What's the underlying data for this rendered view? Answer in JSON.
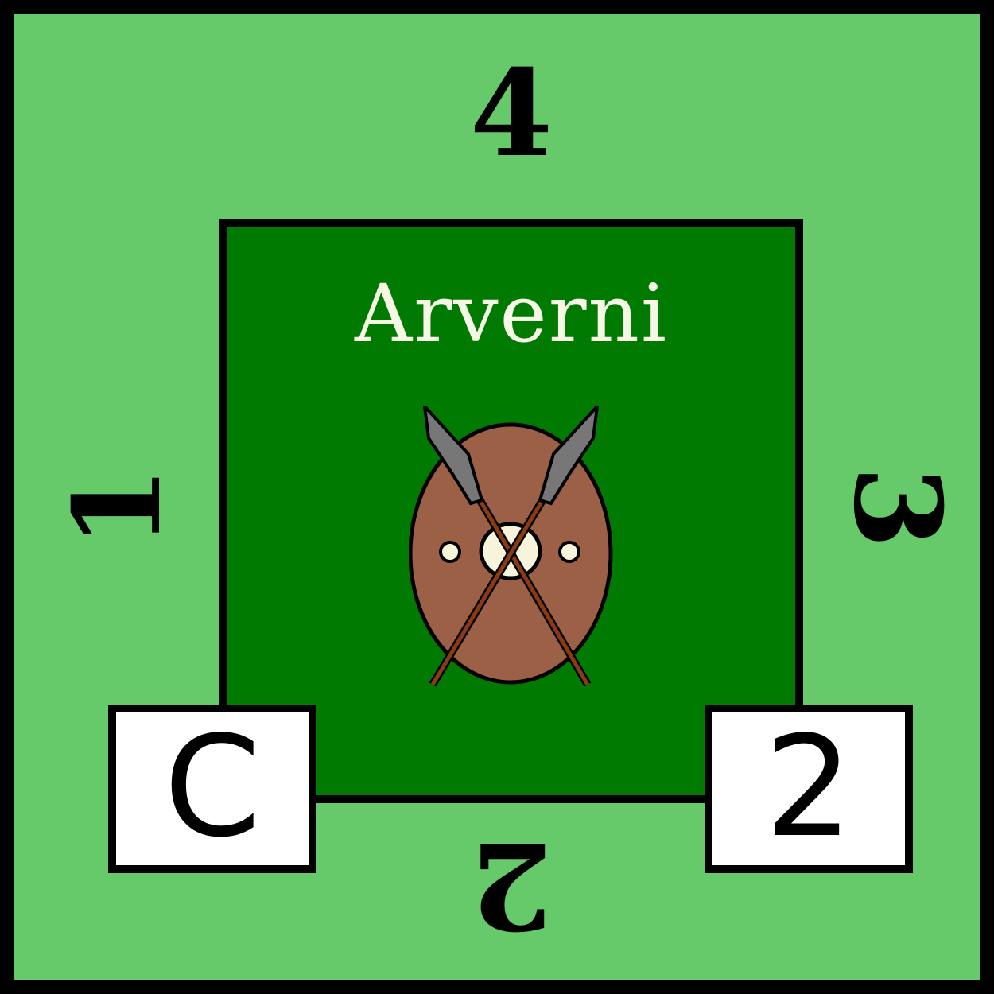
{
  "tile": {
    "edge_numbers": {
      "top": "4",
      "right": "3",
      "bottom": "2",
      "left": "1"
    },
    "title": "Arverni",
    "emblem": "shield-with-crossed-spears-icon",
    "left_box": "C",
    "right_box": "2",
    "colors": {
      "outer": "#66c96a",
      "inner": "#007a00",
      "shield": "#9b6045",
      "spear_shaft": "#8b3a12",
      "spear_tip": "#777777",
      "boss": "#f7f4dc"
    }
  }
}
